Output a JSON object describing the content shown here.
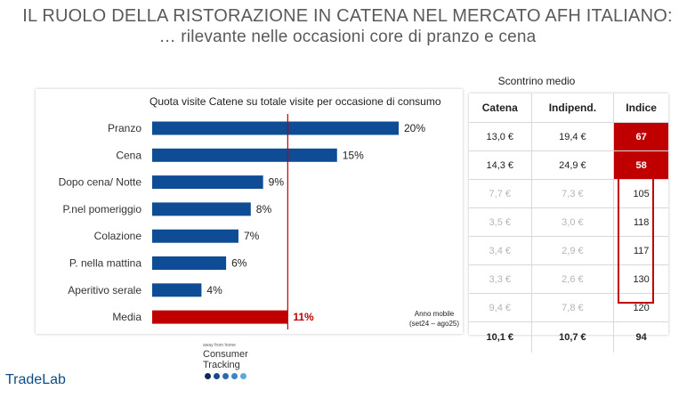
{
  "title": {
    "line1": "IL RUOLO DELLA RISTORAZIONE IN CATENA NEL MERCATO AFH ITALIANO:",
    "line2": "… rilevante nelle occasioni core di pranzo e cena"
  },
  "chart_data": {
    "type": "bar",
    "orientation": "horizontal",
    "title": "Quota visite Catene su totale visite per occasione di consumo",
    "categories": [
      "Pranzo",
      "Cena",
      "Dopo cena/ Notte",
      "P.nel pomeriggio",
      "Colazione",
      "P. nella mattina",
      "Aperitivo serale",
      "Media"
    ],
    "values": [
      20,
      15,
      9,
      8,
      7,
      6,
      4,
      11
    ],
    "value_labels": [
      "20%",
      "15%",
      "9%",
      "8%",
      "7%",
      "6%",
      "4%",
      "11%"
    ],
    "value_unit": "%",
    "xlim": [
      0,
      24
    ],
    "reference_line": 11,
    "colors": {
      "bar": "#0e4c96",
      "highlight": "#c00000",
      "reference_line": "#c00000"
    },
    "highlight_category": "Media",
    "note_line1": "Anno mobile",
    "note_line2": "(set24 – ago25)"
  },
  "table": {
    "header": "Scontrino medio",
    "columns": [
      "Catena",
      "Indipend.",
      "Indice"
    ],
    "rows": [
      {
        "catena": "13,0 €",
        "indipend": "19,4 €",
        "indice": "67"
      },
      {
        "catena": "14,3 €",
        "indipend": "24,9 €",
        "indice": "58"
      },
      {
        "catena": "7,7 €",
        "indipend": "7,3 €",
        "indice": "105"
      },
      {
        "catena": "3,5 €",
        "indipend": "3,0 €",
        "indice": "118"
      },
      {
        "catena": "3,4 €",
        "indipend": "2,9 €",
        "indice": "117"
      },
      {
        "catena": "3,3 €",
        "indipend": "2,6 €",
        "indice": "130"
      },
      {
        "catena": "9,4 €",
        "indipend": "7,8 €",
        "indice": "120"
      }
    ],
    "total": {
      "catena": "10,1 €",
      "indipend": "10,7 €",
      "indice": "94"
    }
  },
  "logos": {
    "consumer_tracking_small": "away from home",
    "consumer_tracking": "Consumer Tracking",
    "tradelab": "TradeLab"
  }
}
